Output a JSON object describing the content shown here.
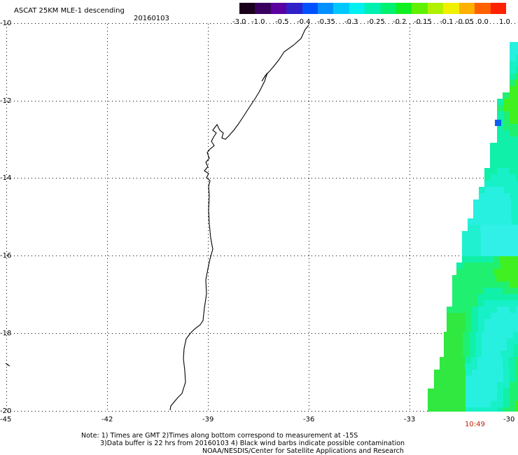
{
  "title": "ASCAT 25KM MLE-1 descending",
  "date": "20160103",
  "colorbar": {
    "labels": [
      "-3.0",
      "-1.0",
      "-0.5",
      "-0.4",
      "-0.35",
      "-0.3",
      "-0.25",
      "-0.2",
      "-0.15",
      "-0.1",
      "-0.05",
      "0.0",
      "1.0"
    ],
    "colors": [
      "#1a001a",
      "#3a0060",
      "#5a00a0",
      "#3020c8",
      "#0050ff",
      "#0090ff",
      "#00c8ff",
      "#00f0f0",
      "#00f0b0",
      "#00f070",
      "#10f020",
      "#60f000",
      "#b0f000",
      "#f0f000",
      "#ffb000",
      "#ff6000",
      "#ff2000"
    ]
  },
  "map": {
    "lat_labels": [
      "-10",
      "-12",
      "-14",
      "-16",
      "-18",
      "-20"
    ],
    "lon_labels": [
      "-45",
      "-42",
      "-39",
      "-36",
      "-33",
      "-30"
    ]
  },
  "swath_time": "10:49",
  "notes": [
    "Note: 1) Times are GMT 2)Times along bottom correspond to measurement at -15S",
    "3)Data buffer is 22 hrs from 20160103 4) Black wind barbs indicate possible contamination",
    "NOAA/NESDIS/Center for Satellite Applications and Research"
  ]
}
